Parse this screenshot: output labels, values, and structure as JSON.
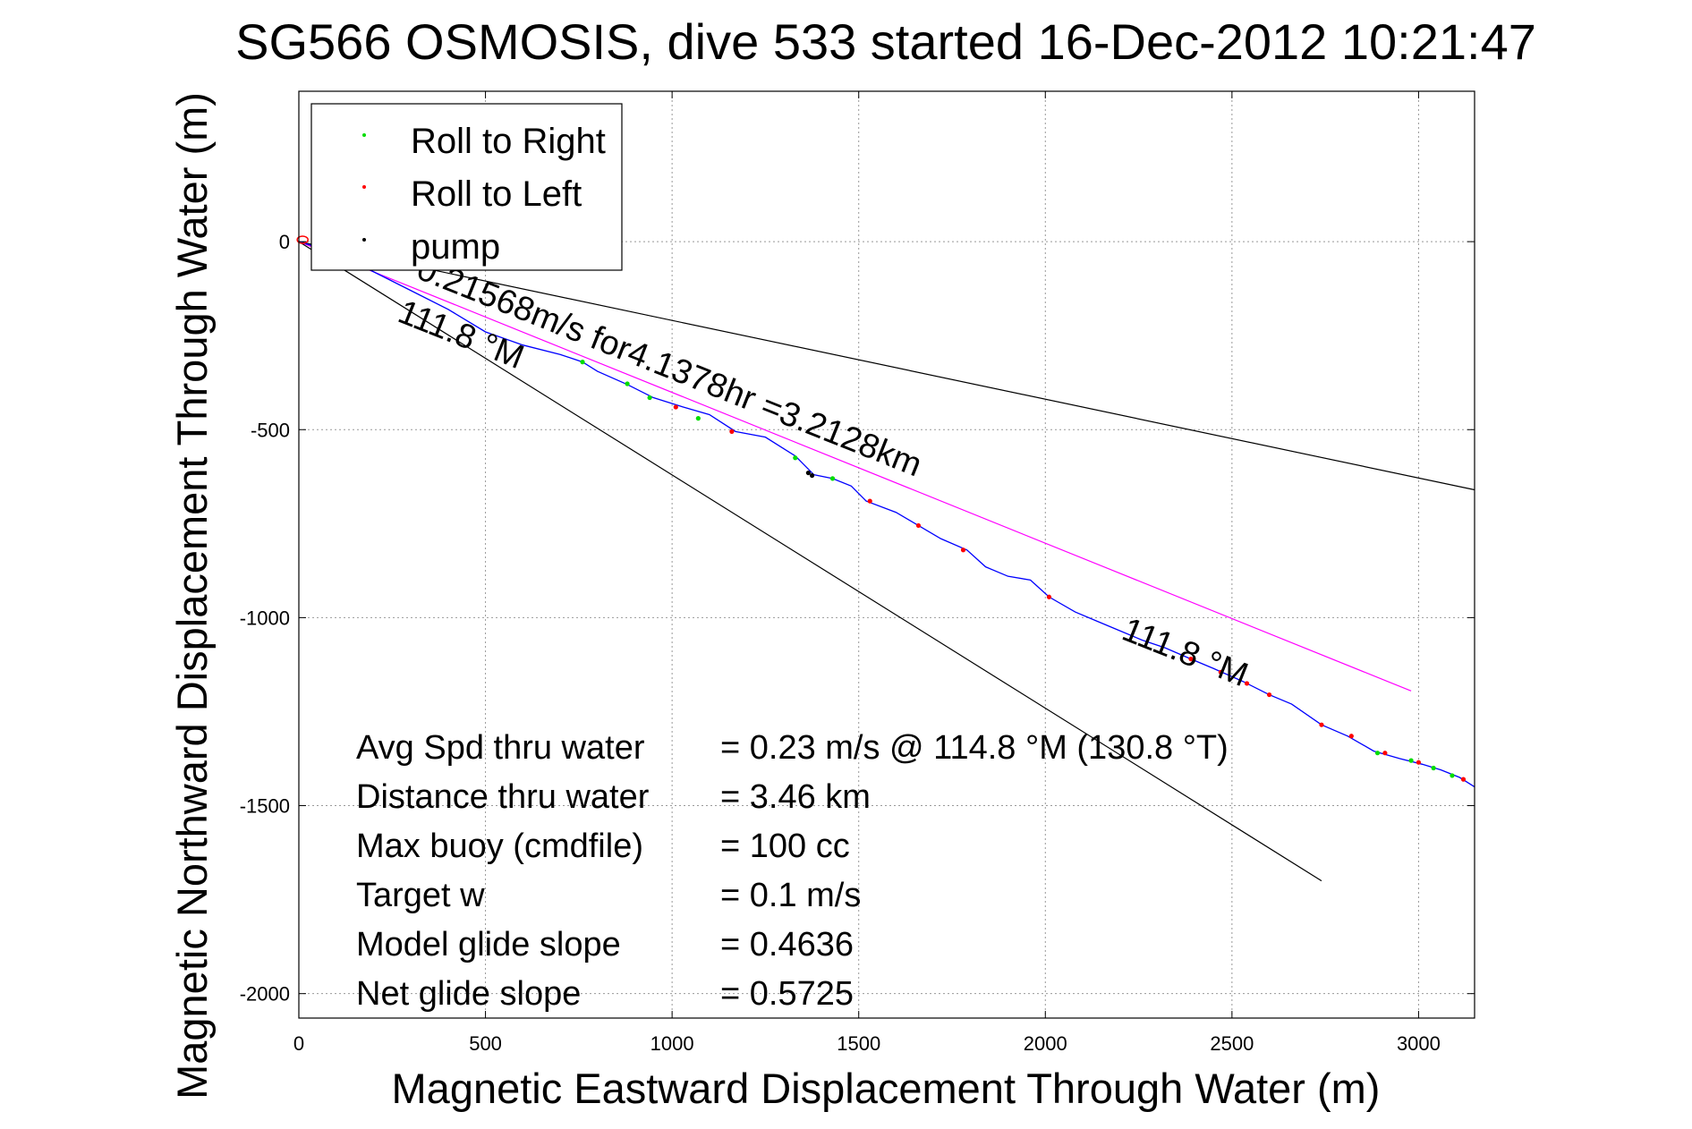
{
  "chart_data": {
    "type": "line",
    "title": "SG566 OSMOSIS, dive 533 started 16-Dec-2012 10:21:47",
    "xlabel": "Magnetic Eastward Displacement Through Water (m)",
    "ylabel": "Magnetic Northward Displacement Through Water (m)",
    "xlim": [
      0,
      3150
    ],
    "ylim": [
      -2065,
      400
    ],
    "xticks": [
      0,
      500,
      1000,
      1500,
      2000,
      2500,
      3000
    ],
    "xtick_labels": [
      "0",
      "500",
      "1000",
      "1500",
      "2000",
      "2500",
      "3000"
    ],
    "yticks": [
      0,
      -500,
      -1000,
      -1500,
      -2000
    ],
    "ytick_labels": [
      "0",
      "-500",
      "-1000",
      "-1500",
      "-2000"
    ],
    "grid": true,
    "legend": {
      "placement": "top-left",
      "entries": [
        {
          "label": "Roll to Right",
          "color": "#00dd00"
        },
        {
          "label": "Roll to Left",
          "color": "#ff0000"
        },
        {
          "label": "pump",
          "color": "#000000"
        }
      ]
    },
    "colors": {
      "track": "#0000ff",
      "heading_line": "#ff00ff",
      "reference_lines": "#000000"
    },
    "track": {
      "x": [
        0,
        100,
        200,
        300,
        400,
        500,
        600,
        700,
        760,
        800,
        880,
        950,
        1030,
        1100,
        1170,
        1250,
        1330,
        1380,
        1430,
        1480,
        1520,
        1600,
        1660,
        1720,
        1790,
        1840,
        1900,
        1960,
        2010,
        2080,
        2140,
        2200,
        2260,
        2320,
        2390,
        2450,
        2530,
        2600,
        2660,
        2740,
        2810,
        2880,
        2950,
        3010,
        3060,
        3110,
        3150
      ],
      "y": [
        0,
        -30,
        -80,
        -130,
        -180,
        -240,
        -275,
        -300,
        -320,
        -345,
        -380,
        -415,
        -440,
        -460,
        -505,
        -520,
        -570,
        -620,
        -630,
        -650,
        -690,
        -720,
        -755,
        -790,
        -820,
        -865,
        -890,
        -900,
        -945,
        -985,
        -1010,
        -1035,
        -1060,
        -1080,
        -1110,
        -1135,
        -1170,
        -1205,
        -1230,
        -1285,
        -1315,
        -1355,
        -1375,
        -1390,
        -1405,
        -1425,
        -1450
      ]
    },
    "roll_right_points": {
      "x": [
        760,
        880,
        940,
        1070,
        1330,
        1430,
        2890,
        2980,
        3040,
        3090
      ],
      "y": [
        -320,
        -378,
        -415,
        -470,
        -575,
        -630,
        -1360,
        -1380,
        -1400,
        -1420
      ]
    },
    "roll_left_points": {
      "x": [
        1010,
        1160,
        1530,
        1660,
        1780,
        2010,
        2390,
        2470,
        2540,
        2600,
        2740,
        2820,
        2910,
        3000,
        3120
      ],
      "y": [
        -440,
        -505,
        -690,
        -755,
        -820,
        -945,
        -1110,
        -1145,
        -1175,
        -1205,
        -1285,
        -1315,
        -1360,
        -1385,
        -1430
      ]
    },
    "pump_points": {
      "x": [
        1365,
        1375
      ],
      "y": [
        -615,
        -622
      ]
    },
    "heading_line": {
      "x": [
        0,
        2980
      ],
      "y": [
        0,
        -1195
      ]
    },
    "reference_lines": [
      {
        "x": [
          0,
          3150
        ],
        "y": [
          0,
          -660
        ]
      },
      {
        "x": [
          0,
          2740
        ],
        "y": [
          0,
          -1700
        ]
      }
    ],
    "annotations": [
      {
        "text": "0.21568m/s for4.1378hr =3.2128km",
        "x": 310,
        "y": -95,
        "angle": 21.7
      },
      {
        "text": "111.8 °M",
        "x": 260,
        "y": -210,
        "angle": 21.7
      },
      {
        "text": "111.8 °M",
        "x": 2200,
        "y": -1055,
        "angle": 21.7
      }
    ],
    "stats": [
      {
        "label": "Avg Spd thru water",
        "value": "=  0.23 m/s @ 114.8 °M (130.8 °T)"
      },
      {
        "label": "Distance thru water",
        "value": "=  3.46 km"
      },
      {
        "label": "Max buoy (cmdfile)",
        "value": "= 100 cc"
      },
      {
        "label": "Target w",
        "value": "= 0.1 m/s"
      },
      {
        "label": "Model glide slope",
        "value": "= 0.4636"
      },
      {
        "label": "Net glide slope",
        "value": "= 0.5725"
      }
    ]
  }
}
